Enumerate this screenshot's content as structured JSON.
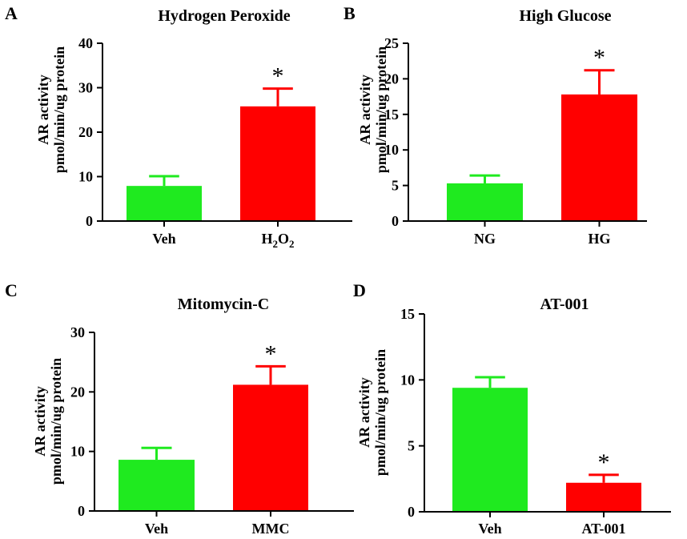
{
  "figure": {
    "colors": {
      "green": "#1fea1f",
      "red": "#ff0000",
      "axis": "#000000"
    }
  },
  "chart_data": [
    {
      "panel": "A",
      "type": "bar",
      "title": "Hydrogen Peroxide",
      "ylabel_line1": "AR activity",
      "ylabel_line2": "pmol/min/ug protein",
      "categories": [
        "Veh",
        "H2O2"
      ],
      "category_display": [
        {
          "main": "Veh"
        },
        {
          "main": "H",
          "sub1": "2",
          "mid": "O",
          "sub2": "2"
        }
      ],
      "values": [
        7.9,
        25.8
      ],
      "errors": [
        2.2,
        4.0
      ],
      "significance": [
        "",
        "*"
      ],
      "ylim": [
        0,
        40
      ],
      "yticks": [
        0,
        10,
        20,
        30,
        40
      ],
      "bar_colors": [
        "#1fea1f",
        "#ff0000"
      ]
    },
    {
      "panel": "B",
      "type": "bar",
      "title": "High Glucose",
      "ylabel_line1": "AR activity",
      "ylabel_line2": "pmol/min/ug protein",
      "categories": [
        "NG",
        "HG"
      ],
      "category_display": [
        {
          "main": "NG"
        },
        {
          "main": "HG"
        }
      ],
      "values": [
        5.3,
        17.8
      ],
      "errors": [
        1.1,
        3.4
      ],
      "significance": [
        "",
        "*"
      ],
      "ylim": [
        0,
        25
      ],
      "yticks": [
        0,
        5,
        10,
        15,
        20,
        25
      ],
      "bar_colors": [
        "#1fea1f",
        "#ff0000"
      ]
    },
    {
      "panel": "C",
      "type": "bar",
      "title": "Mitomycin-C",
      "ylabel_line1": "AR activity",
      "ylabel_line2": "pmol/min/ug protein",
      "categories": [
        "Veh",
        "MMC"
      ],
      "category_display": [
        {
          "main": "Veh"
        },
        {
          "main": "MMC"
        }
      ],
      "values": [
        8.6,
        21.2
      ],
      "errors": [
        2.0,
        3.1
      ],
      "significance": [
        "",
        "*"
      ],
      "ylim": [
        0,
        30
      ],
      "yticks": [
        0,
        10,
        20,
        30
      ],
      "bar_colors": [
        "#1fea1f",
        "#ff0000"
      ]
    },
    {
      "panel": "D",
      "type": "bar",
      "title": "AT-001",
      "ylabel_line1": "AR activity",
      "ylabel_line2": "pmol/min/ug protein",
      "categories": [
        "Veh",
        "AT-001"
      ],
      "category_display": [
        {
          "main": "Veh"
        },
        {
          "main": "AT-001"
        }
      ],
      "values": [
        9.4,
        2.2
      ],
      "errors": [
        0.8,
        0.6
      ],
      "significance": [
        "",
        "*"
      ],
      "ylim": [
        0,
        15
      ],
      "yticks": [
        0,
        5,
        10,
        15
      ],
      "bar_colors": [
        "#1fea1f",
        "#ff0000"
      ]
    }
  ]
}
